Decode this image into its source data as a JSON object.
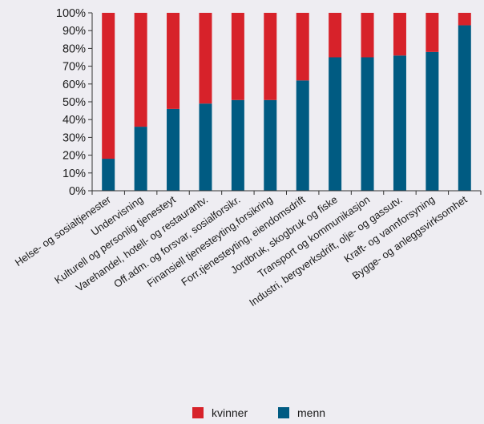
{
  "chart_data": {
    "type": "bar",
    "stacked": true,
    "categories": [
      "Helse- og sosialtjenester",
      "Undervisning",
      "Kulturell og personlig tjenesteyt",
      "Varehandel, hotell- og restaurantv.",
      "Off.adm. og forsvar, sosialforsikr.",
      "Finansiell tjenesteyting,forsikring",
      "Forr.tjenesteyting, eiendomsdrift",
      "Jordbruk, skogbruk og fiske",
      "Transport og kommunikasjon",
      "Industri, bergverksdrift, olje- og gassutv.",
      "Kraft- og vannforsyning",
      "Bygge- og anleggsvirksomhet"
    ],
    "series": [
      {
        "name": "menn",
        "color": "#005b82",
        "values": [
          18,
          36,
          46,
          49,
          51,
          51,
          62,
          75,
          75,
          76,
          78,
          93
        ]
      },
      {
        "name": "kvinner",
        "color": "#d7222a",
        "values": [
          82,
          64,
          54,
          51,
          49,
          49,
          38,
          25,
          25,
          24,
          22,
          7
        ]
      }
    ],
    "legend_order": [
      "kvinner",
      "menn"
    ],
    "y_ticks": [
      "0%",
      "10%",
      "20%",
      "30%",
      "40%",
      "50%",
      "60%",
      "70%",
      "80%",
      "90%",
      "100%"
    ],
    "ylim": [
      0,
      100
    ],
    "grid": false,
    "legend_position": "bottom-center",
    "title": "",
    "xlabel": "",
    "ylabel": ""
  }
}
